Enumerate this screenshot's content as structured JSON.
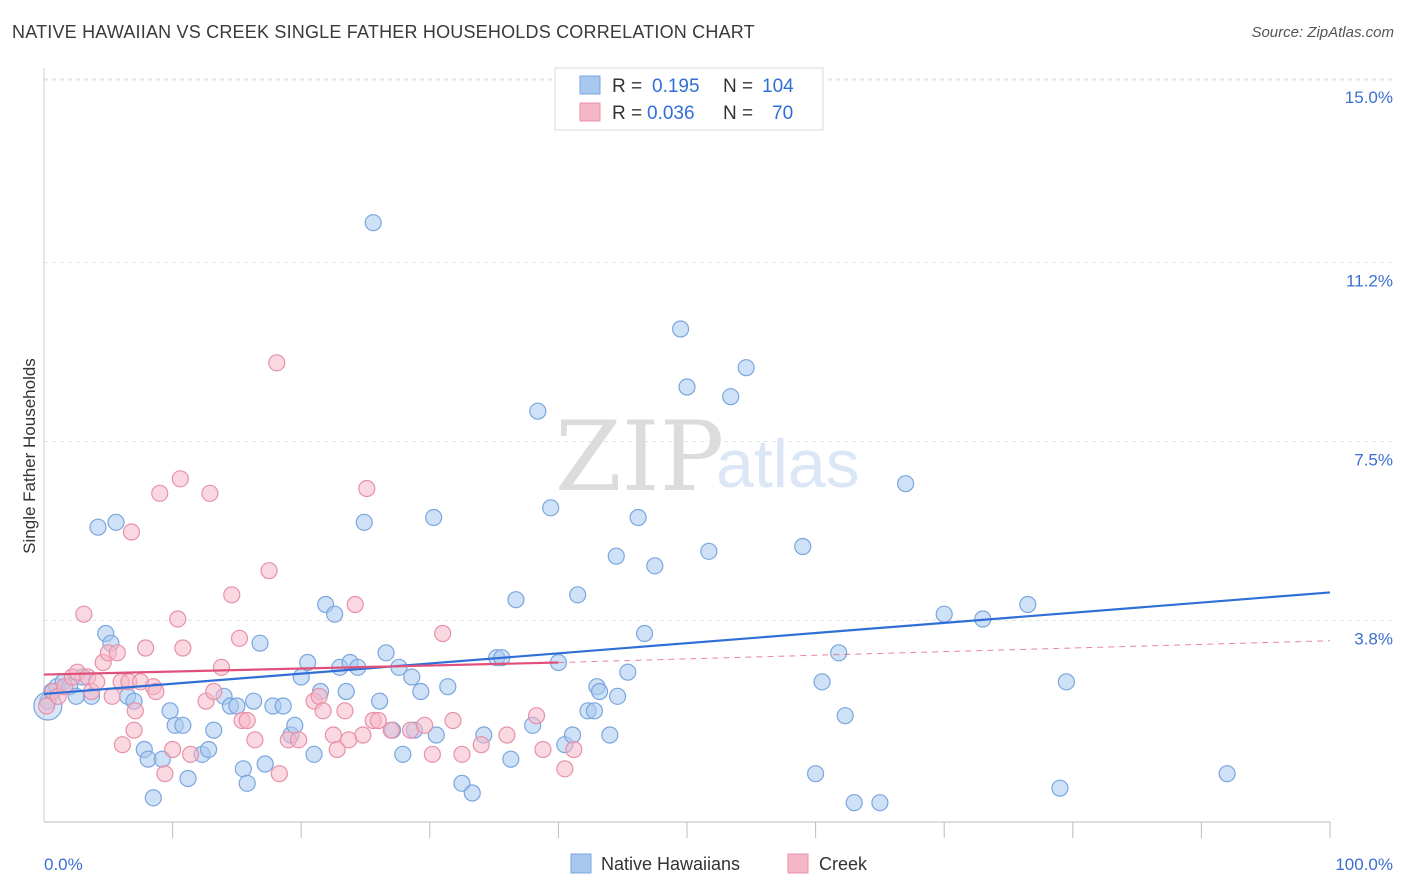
{
  "title": "NATIVE HAWAIIAN VS CREEK SINGLE FATHER HOUSEHOLDS CORRELATION CHART",
  "source": "Source: ZipAtlas.com",
  "watermark": {
    "zip": "ZIP",
    "atlas": "atlas"
  },
  "legend": {
    "rows": [
      {
        "r_label": "R =",
        "r_value": "0.195",
        "n_label": "N =",
        "n_value": "104",
        "color": "#a8c8f0"
      },
      {
        "r_label": "R =",
        "r_value": "0.036",
        "n_label": "N =",
        "n_value": "70",
        "color": "#f5b8c8"
      }
    ]
  },
  "bottom_legend": [
    "Native Hawaiians",
    "Creek"
  ],
  "chart_data": {
    "type": "scatter",
    "ylabel": "Single Father Households",
    "xlim": [
      0,
      100
    ],
    "ylim": [
      0,
      15.6
    ],
    "y_ticks": [
      {
        "value": 3.8,
        "label": "3.8%"
      },
      {
        "value": 7.5,
        "label": "7.5%"
      },
      {
        "value": 11.2,
        "label": "11.2%"
      },
      {
        "value": 15.0,
        "label": "15.0%"
      }
    ],
    "x_tick_labels": [
      {
        "value": 0,
        "label": "0.0%"
      },
      {
        "value": 100,
        "label": "100.0%"
      }
    ],
    "x_minor_ticks": [
      10,
      20,
      30,
      40,
      50,
      60,
      70,
      80,
      90,
      100
    ],
    "grid": true,
    "series": [
      {
        "name": "Native Hawaiians",
        "color": "#a8c8f0",
        "stroke": "#7aa6dd",
        "trend": {
          "x0": 0,
          "y0": 2.65,
          "x1": 100,
          "y1": 4.75,
          "color": "#2f6fd6"
        },
        "points": [
          [
            0.3,
            2.5
          ],
          [
            0.6,
            2.7
          ],
          [
            1.0,
            2.8
          ],
          [
            1.5,
            2.9
          ],
          [
            2.0,
            2.8
          ],
          [
            2.5,
            2.6
          ],
          [
            3.0,
            3.0
          ],
          [
            3.7,
            2.6
          ],
          [
            4.2,
            6.1
          ],
          [
            4.8,
            3.9
          ],
          [
            5.2,
            3.7
          ],
          [
            5.6,
            6.2
          ],
          [
            6.5,
            2.6
          ],
          [
            7.0,
            2.5
          ],
          [
            7.8,
            1.5
          ],
          [
            8.5,
            0.5
          ],
          [
            8.1,
            1.3
          ],
          [
            9.2,
            1.3
          ],
          [
            9.8,
            2.3
          ],
          [
            10.2,
            2.0
          ],
          [
            10.8,
            2.0
          ],
          [
            11.2,
            0.9
          ],
          [
            12.3,
            1.4
          ],
          [
            12.8,
            1.5
          ],
          [
            13.2,
            1.9
          ],
          [
            14.0,
            2.6
          ],
          [
            14.5,
            2.4
          ],
          [
            15.0,
            2.4
          ],
          [
            15.5,
            1.1
          ],
          [
            15.8,
            0.8
          ],
          [
            16.3,
            2.5
          ],
          [
            16.8,
            3.7
          ],
          [
            17.2,
            1.2
          ],
          [
            17.8,
            2.4
          ],
          [
            18.6,
            2.4
          ],
          [
            19.2,
            1.8
          ],
          [
            19.5,
            2.0
          ],
          [
            20.0,
            3.0
          ],
          [
            20.5,
            3.3
          ],
          [
            21.0,
            1.4
          ],
          [
            21.5,
            2.7
          ],
          [
            21.9,
            4.5
          ],
          [
            22.6,
            4.3
          ],
          [
            23.0,
            3.2
          ],
          [
            23.5,
            2.7
          ],
          [
            23.8,
            3.3
          ],
          [
            24.4,
            3.2
          ],
          [
            24.9,
            6.2
          ],
          [
            25.6,
            12.4
          ],
          [
            26.1,
            2.5
          ],
          [
            26.6,
            3.5
          ],
          [
            27.1,
            1.9
          ],
          [
            27.6,
            3.2
          ],
          [
            27.9,
            1.4
          ],
          [
            28.6,
            3.0
          ],
          [
            28.8,
            1.9
          ],
          [
            29.3,
            2.7
          ],
          [
            30.3,
            6.3
          ],
          [
            30.5,
            1.8
          ],
          [
            31.4,
            2.8
          ],
          [
            32.5,
            0.8
          ],
          [
            33.3,
            0.6
          ],
          [
            34.2,
            1.8
          ],
          [
            35.2,
            3.4
          ],
          [
            35.6,
            3.4
          ],
          [
            36.3,
            1.3
          ],
          [
            36.7,
            4.6
          ],
          [
            38.0,
            2.0
          ],
          [
            38.4,
            8.5
          ],
          [
            39.4,
            6.5
          ],
          [
            40.0,
            3.3
          ],
          [
            40.5,
            1.6
          ],
          [
            41.1,
            1.8
          ],
          [
            41.5,
            4.7
          ],
          [
            42.3,
            2.3
          ],
          [
            42.8,
            2.3
          ],
          [
            43.0,
            2.8
          ],
          [
            43.2,
            2.7
          ],
          [
            44.0,
            1.8
          ],
          [
            44.5,
            5.5
          ],
          [
            44.6,
            2.6
          ],
          [
            45.4,
            3.1
          ],
          [
            46.2,
            6.3
          ],
          [
            46.7,
            3.9
          ],
          [
            47.5,
            5.3
          ],
          [
            49.5,
            10.2
          ],
          [
            50.0,
            9.0
          ],
          [
            51.7,
            5.6
          ],
          [
            53.4,
            8.8
          ],
          [
            54.6,
            9.4
          ],
          [
            59.0,
            5.7
          ],
          [
            60.0,
            1.0
          ],
          [
            60.5,
            2.9
          ],
          [
            61.8,
            3.5
          ],
          [
            62.3,
            2.2
          ],
          [
            63.0,
            0.4
          ],
          [
            65.0,
            0.4
          ],
          [
            67.0,
            7.0
          ],
          [
            70.0,
            4.3
          ],
          [
            73.0,
            4.2
          ],
          [
            76.5,
            4.5
          ],
          [
            79.0,
            0.7
          ],
          [
            79.5,
            2.9
          ],
          [
            92.0,
            1.0
          ]
        ]
      },
      {
        "name": "Creek",
        "color": "#f5b8c8",
        "stroke": "#e890a8",
        "trend": {
          "x0": 0,
          "y0": 3.05,
          "x1": 40,
          "y1": 3.3,
          "color": "#e0507a"
        },
        "trend_ext": {
          "x0": 40,
          "y0": 3.3,
          "x1": 100,
          "y1": 3.75
        },
        "points": [
          [
            0.2,
            2.4
          ],
          [
            0.7,
            2.7
          ],
          [
            1.1,
            2.6
          ],
          [
            1.6,
            2.8
          ],
          [
            2.2,
            3.0
          ],
          [
            2.6,
            3.1
          ],
          [
            3.1,
            4.3
          ],
          [
            3.4,
            3.0
          ],
          [
            3.7,
            2.7
          ],
          [
            4.1,
            2.9
          ],
          [
            4.6,
            3.3
          ],
          [
            5.0,
            3.5
          ],
          [
            5.3,
            2.6
          ],
          [
            5.7,
            3.5
          ],
          [
            6.0,
            2.9
          ],
          [
            6.1,
            1.6
          ],
          [
            6.6,
            2.9
          ],
          [
            6.8,
            6.0
          ],
          [
            7.0,
            1.9
          ],
          [
            7.1,
            2.3
          ],
          [
            7.5,
            2.9
          ],
          [
            7.9,
            3.6
          ],
          [
            8.5,
            2.8
          ],
          [
            8.7,
            2.7
          ],
          [
            9.0,
            6.8
          ],
          [
            9.4,
            1.0
          ],
          [
            10.0,
            1.5
          ],
          [
            10.4,
            4.2
          ],
          [
            10.6,
            7.1
          ],
          [
            10.8,
            3.6
          ],
          [
            11.4,
            1.4
          ],
          [
            12.6,
            2.5
          ],
          [
            12.9,
            6.8
          ],
          [
            13.2,
            2.7
          ],
          [
            13.8,
            3.2
          ],
          [
            14.6,
            4.7
          ],
          [
            15.2,
            3.8
          ],
          [
            15.4,
            2.1
          ],
          [
            15.8,
            2.1
          ],
          [
            16.4,
            1.7
          ],
          [
            17.5,
            5.2
          ],
          [
            18.1,
            9.5
          ],
          [
            18.3,
            1.0
          ],
          [
            19.0,
            1.7
          ],
          [
            19.8,
            1.7
          ],
          [
            21.0,
            2.5
          ],
          [
            21.4,
            2.6
          ],
          [
            21.7,
            2.3
          ],
          [
            22.5,
            1.8
          ],
          [
            22.8,
            1.5
          ],
          [
            23.4,
            2.3
          ],
          [
            23.7,
            1.7
          ],
          [
            24.2,
            4.5
          ],
          [
            24.8,
            1.8
          ],
          [
            25.1,
            6.9
          ],
          [
            25.6,
            2.1
          ],
          [
            26.0,
            2.1
          ],
          [
            27.0,
            1.9
          ],
          [
            28.5,
            1.9
          ],
          [
            29.6,
            2.0
          ],
          [
            30.2,
            1.4
          ],
          [
            31.0,
            3.9
          ],
          [
            31.8,
            2.1
          ],
          [
            32.5,
            1.4
          ],
          [
            34.0,
            1.6
          ],
          [
            36.0,
            1.8
          ],
          [
            38.3,
            2.2
          ],
          [
            38.8,
            1.5
          ],
          [
            40.5,
            1.1
          ],
          [
            41.2,
            1.5
          ]
        ]
      }
    ]
  }
}
